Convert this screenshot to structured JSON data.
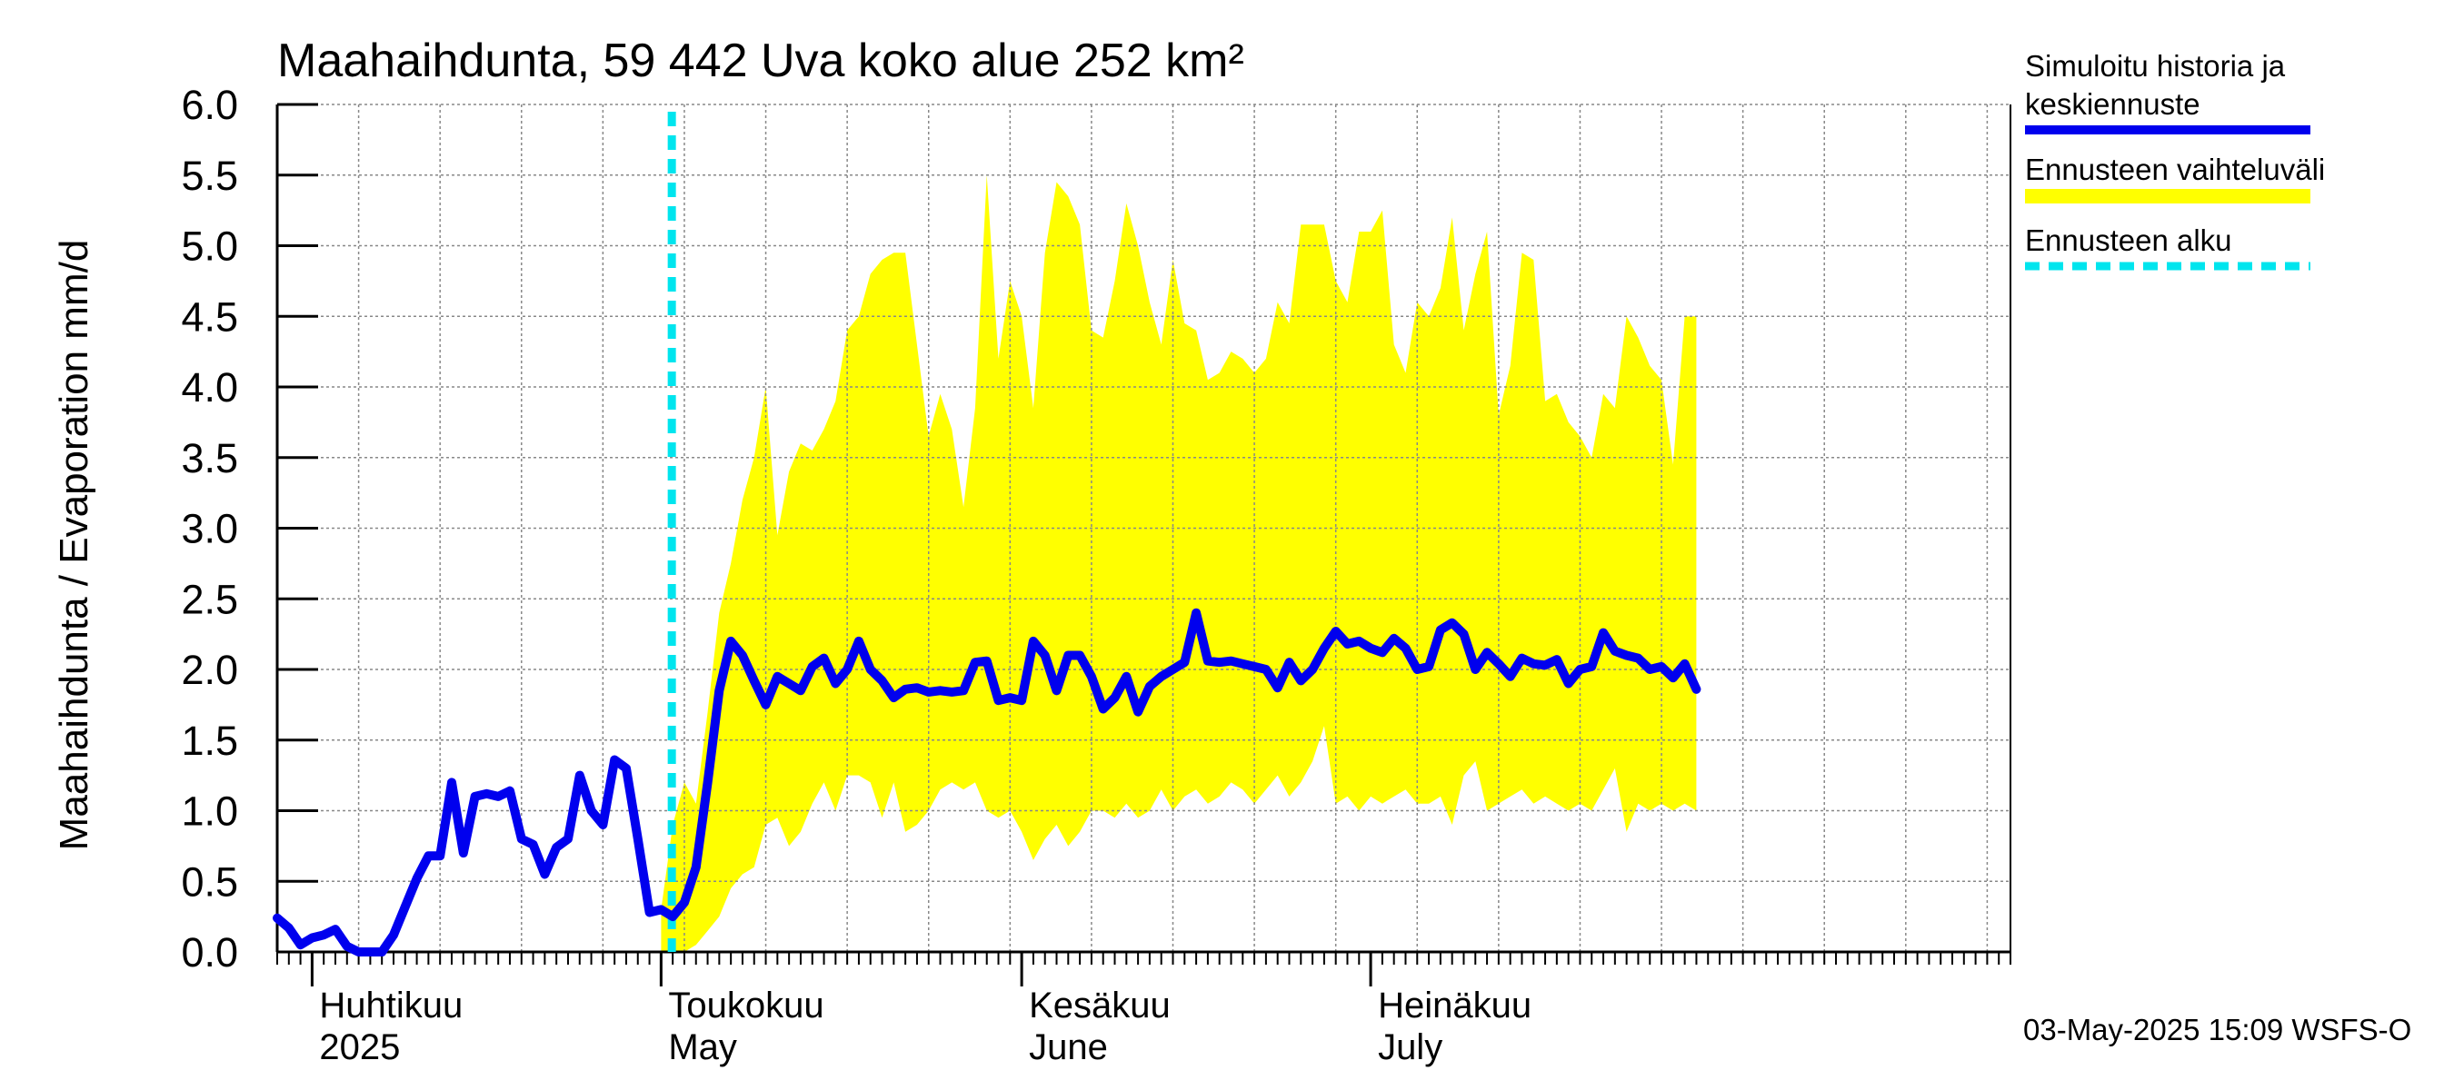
{
  "chart_data": {
    "type": "area",
    "title": "Maahaihdunta, 59 442 Uva koko alue 252 km²",
    "ylabel": "Maahaihdunta / Evaporation   mm/d",
    "ylim": [
      0,
      6
    ],
    "yticks": [
      "0.0",
      "0.5",
      "1.0",
      "1.5",
      "2.0",
      "2.5",
      "3.0",
      "3.5",
      "4.0",
      "4.5",
      "5.0",
      "5.5",
      "6.0"
    ],
    "x_start": "2025-03-29",
    "x_days": 149,
    "forecast_start_day": 34,
    "months": [
      {
        "day": 3,
        "fi": "Huhtikuu",
        "en": "2025"
      },
      {
        "day": 33,
        "fi": "Toukokuu",
        "en": "May"
      },
      {
        "day": 64,
        "fi": "Kesäkuu",
        "en": "June"
      },
      {
        "day": 94,
        "fi": "Heinäkuu",
        "en": "July"
      }
    ],
    "colors": {
      "history": "#0000ee",
      "band": "#ffff00",
      "forecast_start": "#00e5ee",
      "grid": "#888888"
    },
    "legend": [
      {
        "label": "Simuloitu historia ja",
        "label2": "keskiennuste",
        "style": "history"
      },
      {
        "label": "Ennusteen vaihteluväli",
        "style": "band"
      },
      {
        "label": "Ennusteen alku",
        "style": "forecast_start"
      }
    ],
    "timestamp": "03-May-2025 15:09 WSFS-O",
    "series": [
      {
        "name": "Simuloitu historia ja keskiennuste",
        "points": [
          [
            0,
            0.24
          ],
          [
            1,
            0.17
          ],
          [
            2,
            0.05
          ],
          [
            3,
            0.1
          ],
          [
            4,
            0.12
          ],
          [
            5,
            0.16
          ],
          [
            6,
            0.04
          ],
          [
            7,
            0.0
          ],
          [
            8,
            0.0
          ],
          [
            9,
            0.0
          ],
          [
            10,
            0.12
          ],
          [
            11,
            0.32
          ],
          [
            12,
            0.52
          ],
          [
            13,
            0.68
          ],
          [
            14,
            0.68
          ],
          [
            15,
            1.2
          ],
          [
            16,
            0.7
          ],
          [
            17,
            1.1
          ],
          [
            18,
            1.12
          ],
          [
            19,
            1.1
          ],
          [
            20,
            1.14
          ],
          [
            21,
            0.8
          ],
          [
            22,
            0.76
          ],
          [
            23,
            0.55
          ],
          [
            24,
            0.74
          ],
          [
            25,
            0.8
          ],
          [
            26,
            1.25
          ],
          [
            27,
            1.0
          ],
          [
            28,
            0.9
          ],
          [
            29,
            1.36
          ],
          [
            30,
            1.3
          ],
          [
            31,
            0.8
          ],
          [
            32,
            0.28
          ],
          [
            33,
            0.3
          ],
          [
            34,
            0.25
          ],
          [
            35,
            0.35
          ],
          [
            36,
            0.6
          ],
          [
            37,
            1.2
          ],
          [
            38,
            1.85
          ],
          [
            39,
            2.2
          ],
          [
            40,
            2.1
          ],
          [
            41,
            1.92
          ],
          [
            42,
            1.75
          ],
          [
            43,
            1.95
          ],
          [
            44,
            1.9
          ],
          [
            45,
            1.85
          ],
          [
            46,
            2.02
          ],
          [
            47,
            2.08
          ],
          [
            48,
            1.9
          ],
          [
            49,
            2.0
          ],
          [
            50,
            2.2
          ],
          [
            51,
            2.0
          ],
          [
            52,
            1.92
          ],
          [
            53,
            1.8
          ],
          [
            54,
            1.86
          ],
          [
            55,
            1.87
          ],
          [
            56,
            1.84
          ],
          [
            57,
            1.85
          ],
          [
            58,
            1.84
          ],
          [
            59,
            1.85
          ],
          [
            60,
            2.05
          ],
          [
            61,
            2.06
          ],
          [
            62,
            1.78
          ],
          [
            63,
            1.8
          ],
          [
            64,
            1.78
          ],
          [
            65,
            2.2
          ],
          [
            66,
            2.1
          ],
          [
            67,
            1.85
          ],
          [
            68,
            2.1
          ],
          [
            69,
            2.1
          ],
          [
            70,
            1.95
          ],
          [
            71,
            1.72
          ],
          [
            72,
            1.8
          ],
          [
            73,
            1.95
          ],
          [
            74,
            1.7
          ],
          [
            75,
            1.88
          ],
          [
            76,
            1.95
          ],
          [
            77,
            2.0
          ],
          [
            78,
            2.05
          ],
          [
            79,
            2.4
          ],
          [
            80,
            2.06
          ],
          [
            81,
            2.05
          ],
          [
            82,
            2.06
          ],
          [
            83,
            2.04
          ],
          [
            84,
            2.02
          ],
          [
            85,
            2.0
          ],
          [
            86,
            1.87
          ],
          [
            87,
            2.05
          ],
          [
            88,
            1.92
          ],
          [
            89,
            2.0
          ],
          [
            90,
            2.15
          ],
          [
            91,
            2.27
          ],
          [
            92,
            2.18
          ],
          [
            93,
            2.2
          ],
          [
            94,
            2.15
          ],
          [
            95,
            2.12
          ],
          [
            96,
            2.22
          ],
          [
            97,
            2.15
          ],
          [
            98,
            2.0
          ],
          [
            99,
            2.02
          ],
          [
            100,
            2.28
          ],
          [
            101,
            2.33
          ],
          [
            102,
            2.25
          ],
          [
            103,
            2.0
          ],
          [
            104,
            2.12
          ],
          [
            105,
            2.04
          ],
          [
            106,
            1.95
          ],
          [
            107,
            2.08
          ],
          [
            108,
            2.04
          ],
          [
            109,
            2.03
          ],
          [
            110,
            2.07
          ],
          [
            111,
            1.9
          ],
          [
            112,
            2.0
          ],
          [
            113,
            2.02
          ],
          [
            114,
            2.26
          ],
          [
            115,
            2.13
          ],
          [
            116,
            2.1
          ],
          [
            117,
            2.08
          ],
          [
            118,
            2.0
          ],
          [
            119,
            2.02
          ],
          [
            120,
            1.94
          ],
          [
            121,
            2.04
          ],
          [
            122,
            1.86
          ]
        ]
      },
      {
        "name": "Ennusteen vaihteluväli",
        "upper": [
          [
            33,
            0.3
          ],
          [
            34,
            0.9
          ],
          [
            35,
            1.2
          ],
          [
            36,
            1.05
          ],
          [
            37,
            1.7
          ],
          [
            38,
            2.4
          ],
          [
            39,
            2.75
          ],
          [
            40,
            3.2
          ],
          [
            41,
            3.5
          ],
          [
            42,
            4.0
          ],
          [
            43,
            2.95
          ],
          [
            44,
            3.4
          ],
          [
            45,
            3.6
          ],
          [
            46,
            3.55
          ],
          [
            47,
            3.7
          ],
          [
            48,
            3.9
          ],
          [
            49,
            4.4
          ],
          [
            50,
            4.5
          ],
          [
            51,
            4.8
          ],
          [
            52,
            4.9
          ],
          [
            53,
            4.95
          ],
          [
            54,
            4.95
          ],
          [
            55,
            4.3
          ],
          [
            56,
            3.65
          ],
          [
            57,
            3.95
          ],
          [
            58,
            3.7
          ],
          [
            59,
            3.15
          ],
          [
            60,
            3.85
          ],
          [
            61,
            5.5
          ],
          [
            62,
            4.2
          ],
          [
            63,
            4.75
          ],
          [
            64,
            4.5
          ],
          [
            65,
            3.85
          ],
          [
            66,
            4.95
          ],
          [
            67,
            5.45
          ],
          [
            68,
            5.35
          ],
          [
            69,
            5.15
          ],
          [
            70,
            4.4
          ],
          [
            71,
            4.35
          ],
          [
            72,
            4.75
          ],
          [
            73,
            5.3
          ],
          [
            74,
            5.0
          ],
          [
            75,
            4.6
          ],
          [
            76,
            4.3
          ],
          [
            77,
            4.9
          ],
          [
            78,
            4.45
          ],
          [
            79,
            4.4
          ],
          [
            80,
            4.05
          ],
          [
            81,
            4.1
          ],
          [
            82,
            4.25
          ],
          [
            83,
            4.2
          ],
          [
            84,
            4.1
          ],
          [
            85,
            4.2
          ],
          [
            86,
            4.6
          ],
          [
            87,
            4.45
          ],
          [
            88,
            5.15
          ],
          [
            89,
            5.15
          ],
          [
            90,
            5.15
          ],
          [
            91,
            4.75
          ],
          [
            92,
            4.6
          ],
          [
            93,
            5.1
          ],
          [
            94,
            5.1
          ],
          [
            95,
            5.25
          ],
          [
            96,
            4.3
          ],
          [
            97,
            4.1
          ],
          [
            98,
            4.6
          ],
          [
            99,
            4.5
          ],
          [
            100,
            4.7
          ],
          [
            101,
            5.2
          ],
          [
            102,
            4.4
          ],
          [
            103,
            4.8
          ],
          [
            104,
            5.1
          ],
          [
            105,
            3.8
          ],
          [
            106,
            4.15
          ],
          [
            107,
            4.95
          ],
          [
            108,
            4.9
          ],
          [
            109,
            3.9
          ],
          [
            110,
            3.95
          ],
          [
            111,
            3.75
          ],
          [
            112,
            3.65
          ],
          [
            113,
            3.5
          ],
          [
            114,
            3.95
          ],
          [
            115,
            3.85
          ],
          [
            116,
            4.5
          ],
          [
            117,
            4.35
          ],
          [
            118,
            4.15
          ],
          [
            119,
            4.05
          ],
          [
            120,
            3.45
          ],
          [
            121,
            4.5
          ],
          [
            122,
            4.5
          ]
        ],
        "lower": [
          [
            33,
            0.0
          ],
          [
            34,
            0.0
          ],
          [
            35,
            0.0
          ],
          [
            36,
            0.05
          ],
          [
            37,
            0.15
          ],
          [
            38,
            0.25
          ],
          [
            39,
            0.45
          ],
          [
            40,
            0.55
          ],
          [
            41,
            0.6
          ],
          [
            42,
            0.9
          ],
          [
            43,
            0.95
          ],
          [
            44,
            0.75
          ],
          [
            45,
            0.85
          ],
          [
            46,
            1.05
          ],
          [
            47,
            1.2
          ],
          [
            48,
            1.0
          ],
          [
            49,
            1.25
          ],
          [
            50,
            1.25
          ],
          [
            51,
            1.2
          ],
          [
            52,
            0.95
          ],
          [
            53,
            1.2
          ],
          [
            54,
            0.85
          ],
          [
            55,
            0.9
          ],
          [
            56,
            1.0
          ],
          [
            57,
            1.15
          ],
          [
            58,
            1.2
          ],
          [
            59,
            1.15
          ],
          [
            60,
            1.2
          ],
          [
            61,
            1.0
          ],
          [
            62,
            0.95
          ],
          [
            63,
            1.0
          ],
          [
            64,
            0.85
          ],
          [
            65,
            0.65
          ],
          [
            66,
            0.8
          ],
          [
            67,
            0.9
          ],
          [
            68,
            0.75
          ],
          [
            69,
            0.85
          ],
          [
            70,
            1.0
          ],
          [
            71,
            1.0
          ],
          [
            72,
            0.95
          ],
          [
            73,
            1.05
          ],
          [
            74,
            0.95
          ],
          [
            75,
            1.0
          ],
          [
            76,
            1.15
          ],
          [
            77,
            1.0
          ],
          [
            78,
            1.1
          ],
          [
            79,
            1.15
          ],
          [
            80,
            1.05
          ],
          [
            81,
            1.1
          ],
          [
            82,
            1.2
          ],
          [
            83,
            1.15
          ],
          [
            84,
            1.05
          ],
          [
            85,
            1.15
          ],
          [
            86,
            1.25
          ],
          [
            87,
            1.1
          ],
          [
            88,
            1.2
          ],
          [
            89,
            1.35
          ],
          [
            90,
            1.6
          ],
          [
            91,
            1.05
          ],
          [
            92,
            1.1
          ],
          [
            93,
            1.0
          ],
          [
            94,
            1.1
          ],
          [
            95,
            1.05
          ],
          [
            96,
            1.1
          ],
          [
            97,
            1.15
          ],
          [
            98,
            1.05
          ],
          [
            99,
            1.05
          ],
          [
            100,
            1.1
          ],
          [
            101,
            0.9
          ],
          [
            102,
            1.25
          ],
          [
            103,
            1.35
          ],
          [
            104,
            1.0
          ],
          [
            105,
            1.05
          ],
          [
            106,
            1.1
          ],
          [
            107,
            1.15
          ],
          [
            108,
            1.05
          ],
          [
            109,
            1.1
          ],
          [
            110,
            1.05
          ],
          [
            111,
            1.0
          ],
          [
            112,
            1.05
          ],
          [
            113,
            1.0
          ],
          [
            114,
            1.15
          ],
          [
            115,
            1.3
          ],
          [
            116,
            0.85
          ],
          [
            117,
            1.05
          ],
          [
            118,
            1.0
          ],
          [
            119,
            1.05
          ],
          [
            120,
            1.0
          ],
          [
            121,
            1.05
          ],
          [
            122,
            1.0
          ]
        ]
      }
    ]
  }
}
